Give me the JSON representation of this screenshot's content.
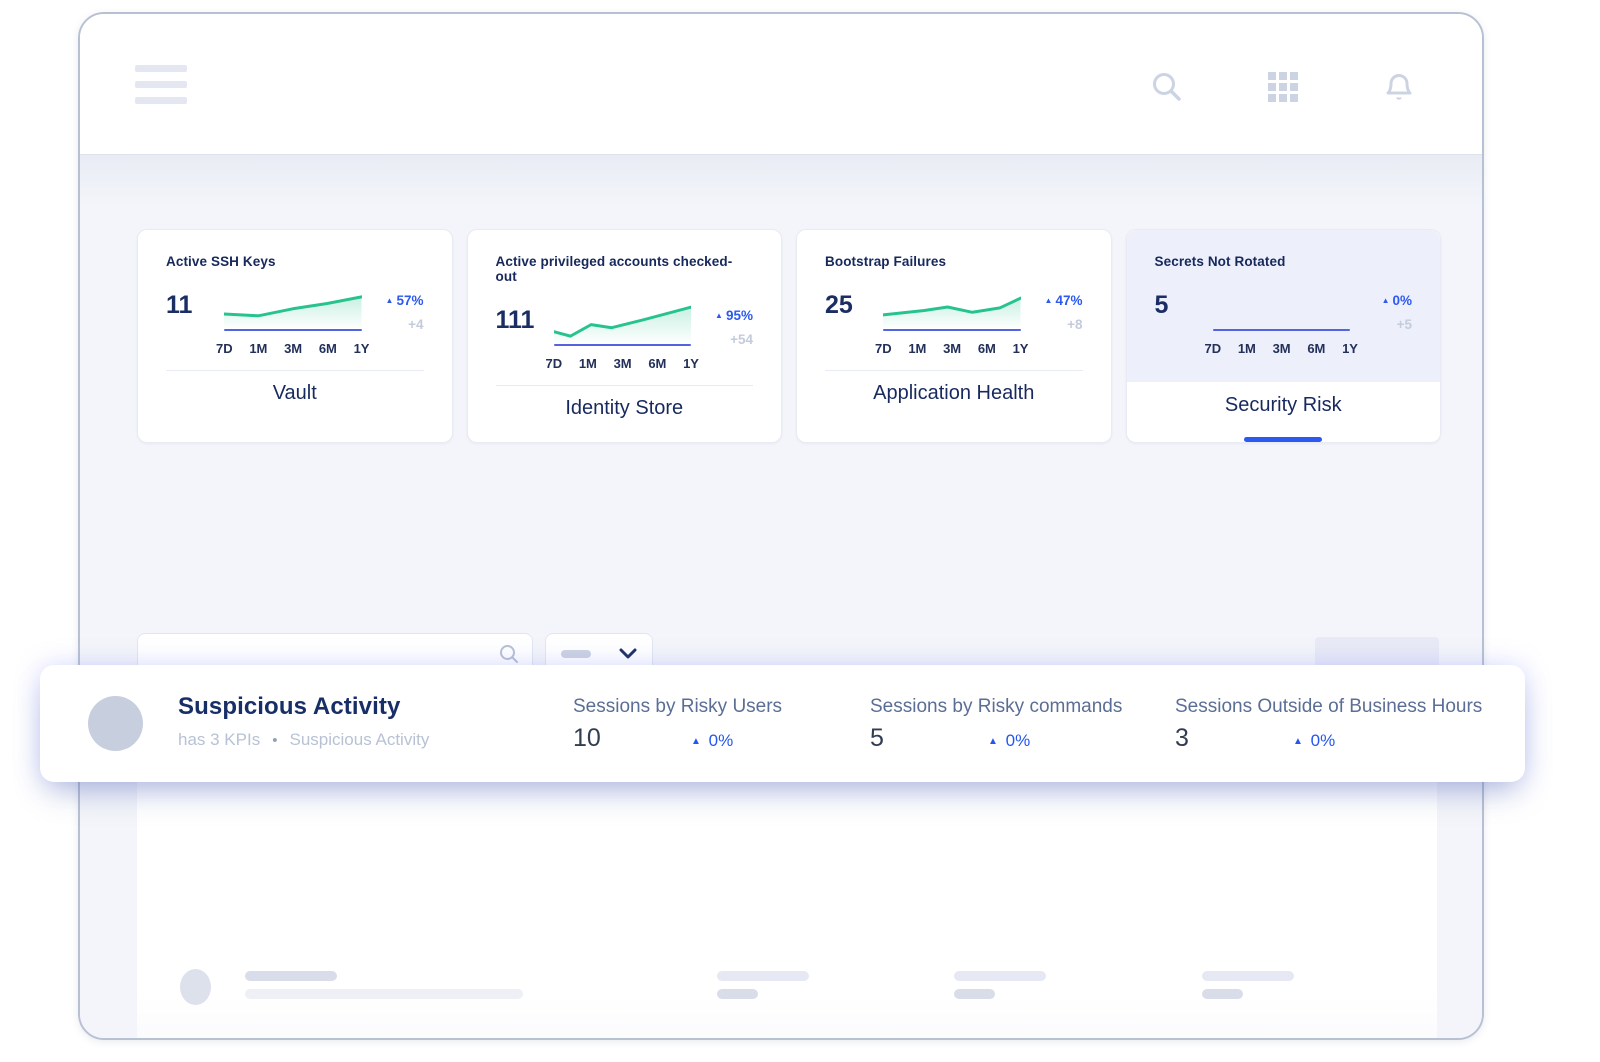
{
  "header": {
    "icons": {
      "menu": "hamburger-menu",
      "search": "search",
      "apps": "app-grid",
      "notifications": "bell"
    }
  },
  "colors": {
    "accent_blue": "#2b59f2",
    "spark_line": "#26c38c",
    "spark_fill": "#26c38c",
    "baseline_blue": "#5463e0",
    "navy_text": "#17295e",
    "muted_gray": "#c4cbdb",
    "active_card_tint": "#edeffa"
  },
  "kpi_cards": [
    {
      "title": "Active SSH Keys",
      "value": "11",
      "change_pct": "57%",
      "change_abs": "+4",
      "trend": "up",
      "ranges": [
        "7D",
        "1M",
        "3M",
        "6M",
        "1Y"
      ],
      "category": "Vault",
      "active": false,
      "spark": [
        [
          0,
          0.66
        ],
        [
          0.25,
          0.7
        ],
        [
          0.5,
          0.54
        ],
        [
          0.75,
          0.42
        ],
        [
          1,
          0.27
        ]
      ]
    },
    {
      "title": "Active privileged accounts checked-out",
      "value": "111",
      "change_pct": "95%",
      "change_abs": "+54",
      "trend": "up",
      "ranges": [
        "7D",
        "1M",
        "3M",
        "6M",
        "1Y"
      ],
      "category": "Identity Store",
      "active": false,
      "spark": [
        [
          0,
          0.72
        ],
        [
          0.12,
          0.82
        ],
        [
          0.27,
          0.56
        ],
        [
          0.42,
          0.63
        ],
        [
          0.65,
          0.45
        ],
        [
          1,
          0.16
        ]
      ]
    },
    {
      "title": "Bootstrap Failures",
      "value": "25",
      "change_pct": "47%",
      "change_abs": "+8",
      "trend": "up",
      "ranges": [
        "7D",
        "1M",
        "3M",
        "6M",
        "1Y"
      ],
      "category": "Application Health",
      "active": false,
      "spark": [
        [
          0,
          0.68
        ],
        [
          0.3,
          0.58
        ],
        [
          0.47,
          0.5
        ],
        [
          0.65,
          0.62
        ],
        [
          0.85,
          0.52
        ],
        [
          1,
          0.3
        ]
      ]
    },
    {
      "title": "Secrets Not Rotated",
      "value": "5",
      "change_pct": "0%",
      "change_abs": "+5",
      "trend": "up",
      "ranges": [
        "7D",
        "1M",
        "3M",
        "6M",
        "1Y"
      ],
      "category": "Security Risk",
      "active": true,
      "spark": []
    }
  ],
  "toolbar": {
    "search_value": "",
    "search_placeholder": ""
  },
  "list": {
    "highlight": {
      "title": "Suspicious Activity",
      "subtitle_meta": "has 3 KPIs",
      "subtitle_sep": "•",
      "subtitle_name": "Suspicious Activity",
      "kpis": [
        {
          "label": "Sessions by Risky Users",
          "value": "10",
          "change_pct": "0%",
          "trend": "up"
        },
        {
          "label": "Sessions by Risky commands",
          "value": "5",
          "change_pct": "0%",
          "trend": "up"
        },
        {
          "label": "Sessions Outside of Business Hours",
          "value": "3",
          "change_pct": "0%",
          "trend": "up"
        }
      ]
    },
    "skeleton_row_count": 3
  }
}
